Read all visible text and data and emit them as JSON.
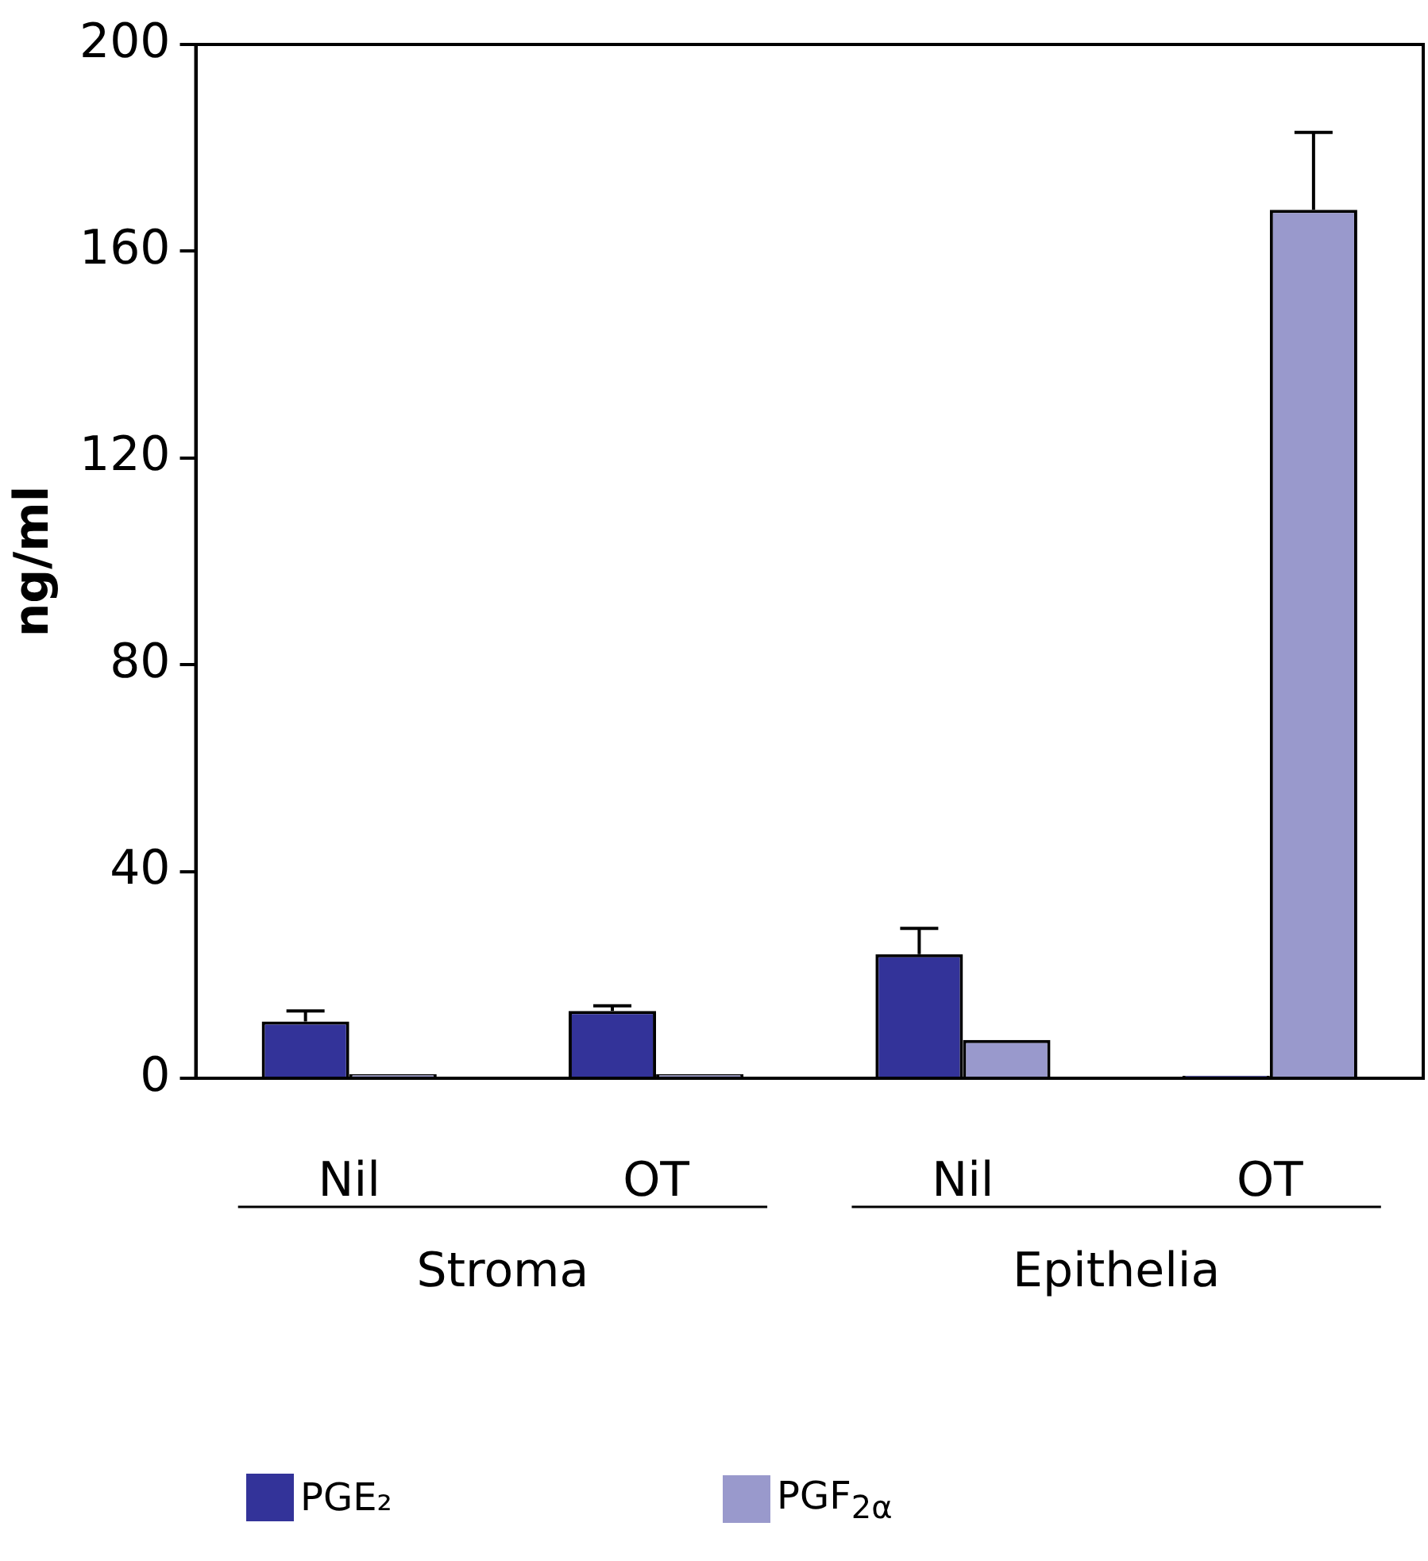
{
  "chart_data": {
    "type": "bar",
    "ylabel": "ng/ml",
    "categories": [
      "Nil",
      "OT",
      "Nil",
      "OT"
    ],
    "series": [
      {
        "name": "PGE₂",
        "color": "#333399",
        "values": [
          11,
          13,
          24,
          0.5
        ],
        "errors": [
          2,
          1,
          5,
          null
        ]
      },
      {
        "name": "PGF$_{2α}$",
        "color": "#9999cc",
        "values": [
          0.8,
          0.8,
          7.4,
          168
        ],
        "errors": [
          null,
          null,
          null,
          15
        ]
      }
    ],
    "ylim": [
      0,
      200
    ],
    "yticks": [
      0,
      40,
      80,
      120,
      160,
      200
    ],
    "grid": false,
    "legend": "bottom",
    "annotations": [
      "Stroma",
      "Epithelia"
    ]
  }
}
